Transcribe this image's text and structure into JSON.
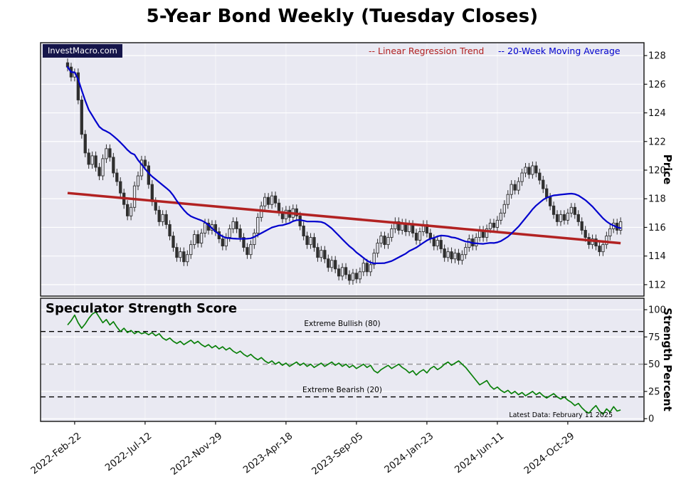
{
  "title": "5-Year Bond Weekly (Tuesday Closes)",
  "watermark": "InvestMacro.com",
  "legend": [
    {
      "label": "-- Linear Regression Trend",
      "color": "#b22222"
    },
    {
      "label": "-- 20-Week Moving Average",
      "color": "#0000cd"
    }
  ],
  "colors": {
    "panel_bg": "#e9e9f2",
    "grid": "#ffffff",
    "border": "#111111",
    "candle_down": "#2f2f2f",
    "candle_up_fill": "#e9e9f2",
    "regression": "#b22222",
    "moving_average": "#0000cd",
    "strength_line": "#0a800a",
    "watermark_bg": "#15154a"
  },
  "chart_data": [
    {
      "type": "candlestick",
      "panel": "price",
      "title": "5-Year Bond Weekly (Tuesday Closes)",
      "ylabel": "Price",
      "ylim": [
        111.2,
        128.9
      ],
      "yticks": [
        112,
        114,
        116,
        118,
        120,
        122,
        124,
        126,
        128
      ],
      "x_frequency": "weekly",
      "xticks": [
        {
          "week": 2,
          "label": "2022-Feb-22"
        },
        {
          "week": 22,
          "label": "2022-Jul-12"
        },
        {
          "week": 42,
          "label": "2022-Nov-29"
        },
        {
          "week": 62,
          "label": "2023-Apr-18"
        },
        {
          "week": 82,
          "label": "2023-Sep-05"
        },
        {
          "week": 102,
          "label": "2024-Jan-23"
        },
        {
          "week": 122,
          "label": "2024-Jun-11"
        },
        {
          "week": 142,
          "label": "2024-Oct-29"
        }
      ],
      "first_open": 127.5,
      "candle_wick": 0.3,
      "closes": [
        127.2,
        126.5,
        126.8,
        124.9,
        122.5,
        121.2,
        120.4,
        121.0,
        120.2,
        119.6,
        120.8,
        121.5,
        120.9,
        119.8,
        119.2,
        118.4,
        117.6,
        116.8,
        117.4,
        118.9,
        119.6,
        120.7,
        120.3,
        119.0,
        117.8,
        117.2,
        116.4,
        116.9,
        116.2,
        115.4,
        114.6,
        113.9,
        114.3,
        113.6,
        114.1,
        114.8,
        115.5,
        114.9,
        115.6,
        116.3,
        115.8,
        116.2,
        115.7,
        115.2,
        114.7,
        115.3,
        115.9,
        116.4,
        115.9,
        115.3,
        114.6,
        114.1,
        114.8,
        115.6,
        116.7,
        117.5,
        118.1,
        117.6,
        118.2,
        117.7,
        117.1,
        116.6,
        117.2,
        116.7,
        117.3,
        116.8,
        116.1,
        115.4,
        114.8,
        115.3,
        114.6,
        113.9,
        114.4,
        113.8,
        113.2,
        113.7,
        113.1,
        112.6,
        113.2,
        112.7,
        112.3,
        112.8,
        112.4,
        112.9,
        113.5,
        112.9,
        113.4,
        114.2,
        114.9,
        115.4,
        114.8,
        115.3,
        115.9,
        116.4,
        115.8,
        116.3,
        115.7,
        116.2,
        115.6,
        115.1,
        115.7,
        116.2,
        115.6,
        115.2,
        114.7,
        115.1,
        114.5,
        113.9,
        114.3,
        113.8,
        114.2,
        113.7,
        114.1,
        114.6,
        115.2,
        114.7,
        115.3,
        115.8,
        115.3,
        115.9,
        116.3,
        116.0,
        116.5,
        117.0,
        117.6,
        118.3,
        119.0,
        118.6,
        119.2,
        119.8,
        120.2,
        119.7,
        120.3,
        119.8,
        119.3,
        118.7,
        118.1,
        117.5,
        116.9,
        116.4,
        116.9,
        116.5,
        117.0,
        117.4,
        116.9,
        116.4,
        115.8,
        115.3,
        114.8,
        115.2,
        114.7,
        114.3,
        114.8,
        115.4,
        115.9,
        116.3,
        115.8,
        116.4
      ],
      "overlays": [
        {
          "name": "Linear Regression Trend",
          "type": "line",
          "color": "#b22222",
          "points": [
            [
              0,
              118.4
            ],
            [
              157,
              114.9
            ]
          ]
        },
        {
          "name": "20-Week Moving Average",
          "type": "rolling_mean",
          "window": 20,
          "color": "#0000cd"
        }
      ]
    },
    {
      "type": "line",
      "panel": "strength",
      "title": "Speculator Strength Score",
      "ylabel": "Strength Percent",
      "ylim": [
        -2.5,
        110.5
      ],
      "yticks": [
        0,
        25,
        50,
        75,
        100
      ],
      "color": "#0a800a",
      "values": [
        86,
        90,
        95,
        88,
        83,
        87,
        92,
        96,
        98,
        93,
        88,
        91,
        86,
        89,
        84,
        80,
        83,
        79,
        81,
        78,
        80,
        78,
        79,
        77,
        79,
        76,
        78,
        74,
        72,
        74,
        71,
        69,
        71,
        68,
        70,
        72,
        69,
        71,
        68,
        66,
        68,
        65,
        67,
        64,
        66,
        63,
        65,
        62,
        60,
        62,
        59,
        57,
        59,
        56,
        54,
        56,
        53,
        51,
        53,
        50,
        52,
        49,
        51,
        48,
        50,
        52,
        49,
        51,
        48,
        50,
        47,
        49,
        51,
        48,
        50,
        52,
        49,
        51,
        48,
        50,
        47,
        49,
        46,
        48,
        50,
        47,
        49,
        44,
        42,
        45,
        47,
        49,
        46,
        48,
        50,
        47,
        45,
        42,
        44,
        40,
        43,
        45,
        42,
        46,
        48,
        45,
        47,
        50,
        52,
        49,
        51,
        53,
        50,
        47,
        43,
        39,
        35,
        31,
        33,
        35,
        30,
        27,
        29,
        26,
        24,
        26,
        23,
        25,
        22,
        24,
        21,
        23,
        25,
        22,
        24,
        21,
        19,
        21,
        23,
        20,
        18,
        20,
        17,
        15,
        12,
        14,
        10,
        7,
        5,
        9,
        12,
        7,
        4,
        9,
        6,
        11,
        7,
        8
      ],
      "reference_lines": [
        {
          "value": 80,
          "label": "Extreme Bullish (80)",
          "color": "#000000",
          "style": "dashed"
        },
        {
          "value": 50,
          "label": "",
          "color": "#999999",
          "style": "dashed"
        },
        {
          "value": 20,
          "label": "Extreme Bearish (20)",
          "color": "#000000",
          "style": "dashed"
        }
      ],
      "note": "Latest Data: February 11 2025"
    }
  ]
}
